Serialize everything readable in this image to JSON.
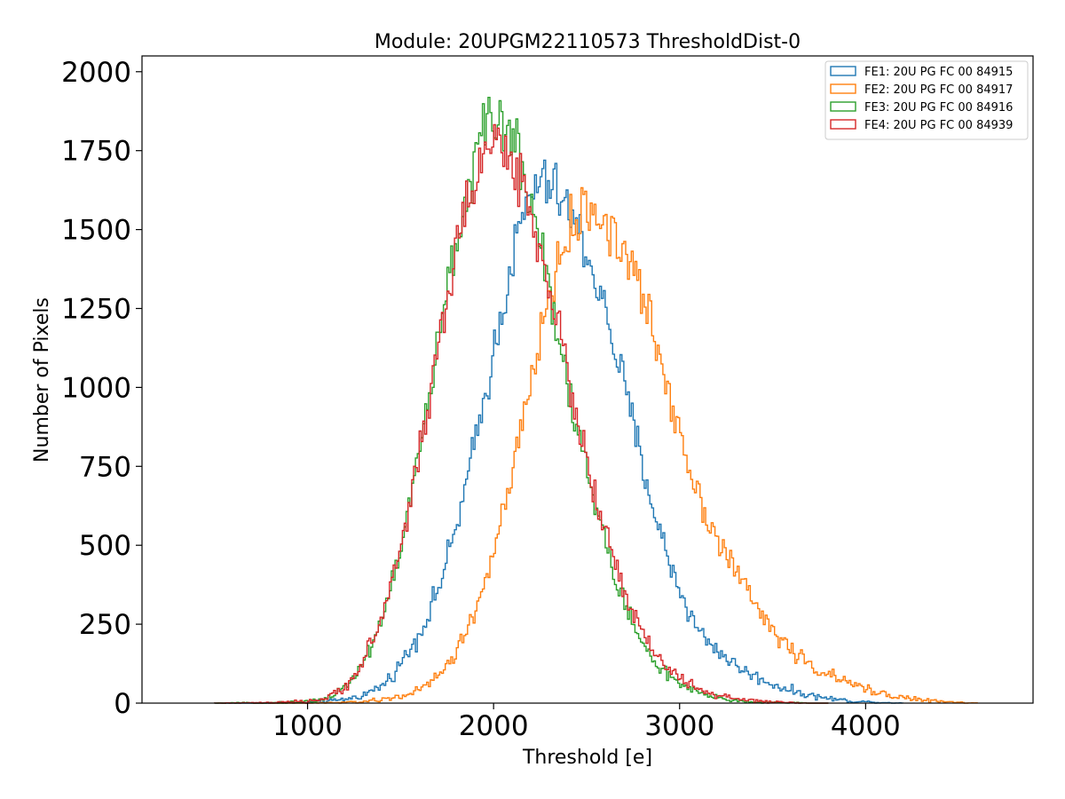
{
  "chart_data": {
    "type": "histogram",
    "title": "Module: 20UPGM22110573 ThresholdDist-0",
    "xlabel": "Threshold [e]",
    "ylabel": "Number of Pixels",
    "xlim": [
      110,
      4900
    ],
    "ylim": [
      0,
      2050
    ],
    "xticks": [
      1000,
      2000,
      3000,
      4000
    ],
    "yticks": [
      0,
      250,
      500,
      750,
      1000,
      1250,
      1500,
      1750,
      2000
    ],
    "grid": false,
    "legend_position": "top-right",
    "series": [
      {
        "name": "FE1: 20U PG FC 00 84915",
        "color": "#1f77b4",
        "x": [
          500,
          800,
          1000,
          1100,
          1200,
          1300,
          1400,
          1450,
          1500,
          1550,
          1600,
          1650,
          1700,
          1750,
          1800,
          1850,
          1900,
          1950,
          2000,
          2050,
          2100,
          2150,
          2200,
          2250,
          2300,
          2350,
          2400,
          2450,
          2500,
          2550,
          2600,
          2650,
          2700,
          2750,
          2800,
          2850,
          2900,
          2950,
          3000,
          3050,
          3100,
          3200,
          3300,
          3400,
          3500,
          3600,
          3700,
          3800,
          3900,
          4000,
          4100,
          4200
        ],
        "y": [
          0,
          0,
          2,
          5,
          12,
          25,
          55,
          85,
          125,
          170,
          220,
          280,
          360,
          450,
          560,
          680,
          820,
          960,
          1110,
          1260,
          1400,
          1520,
          1610,
          1650,
          1640,
          1610,
          1560,
          1500,
          1430,
          1340,
          1240,
          1130,
          1010,
          880,
          760,
          640,
          530,
          440,
          360,
          290,
          230,
          170,
          120,
          85,
          60,
          40,
          25,
          15,
          8,
          4,
          2,
          0
        ],
        "peak": 1690
      },
      {
        "name": "FE2: 20U PG FC 00 84917",
        "color": "#ff7f0e",
        "x": [
          800,
          1000,
          1200,
          1300,
          1400,
          1500,
          1600,
          1650,
          1700,
          1750,
          1800,
          1850,
          1900,
          1950,
          2000,
          2050,
          2100,
          2150,
          2200,
          2250,
          2300,
          2350,
          2400,
          2450,
          2500,
          2550,
          2600,
          2650,
          2700,
          2750,
          2800,
          2850,
          2900,
          2950,
          3000,
          3050,
          3100,
          3200,
          3300,
          3400,
          3500,
          3600,
          3700,
          3800,
          3900,
          4000,
          4100,
          4200,
          4300,
          4400,
          4500,
          4600
        ],
        "y": [
          0,
          0,
          2,
          5,
          10,
          22,
          40,
          60,
          85,
          120,
          165,
          220,
          290,
          380,
          480,
          590,
          720,
          860,
          1010,
          1160,
          1290,
          1400,
          1480,
          1530,
          1560,
          1560,
          1520,
          1480,
          1430,
          1370,
          1290,
          1190,
          1080,
          970,
          870,
          760,
          660,
          530,
          420,
          320,
          230,
          170,
          120,
          90,
          65,
          45,
          30,
          18,
          10,
          5,
          2,
          0
        ]
      },
      {
        "name": "FE3: 20U PG FC 00 84916",
        "color": "#2ca02c",
        "x": [
          500,
          800,
          1000,
          1100,
          1150,
          1200,
          1250,
          1300,
          1350,
          1400,
          1450,
          1500,
          1550,
          1600,
          1650,
          1700,
          1750,
          1800,
          1850,
          1900,
          1950,
          2000,
          2050,
          2100,
          2150,
          2200,
          2250,
          2300,
          2350,
          2400,
          2450,
          2500,
          2550,
          2600,
          2650,
          2700,
          2750,
          2800,
          2850,
          2900,
          2950,
          3000,
          3050,
          3100,
          3200,
          3300,
          3400,
          3500,
          3600,
          3700,
          3800
        ],
        "y": [
          0,
          1,
          5,
          15,
          30,
          50,
          85,
          130,
          190,
          270,
          370,
          490,
          630,
          790,
          960,
          1130,
          1300,
          1460,
          1600,
          1720,
          1800,
          1850,
          1840,
          1790,
          1710,
          1600,
          1470,
          1320,
          1170,
          1010,
          870,
          740,
          620,
          510,
          410,
          320,
          250,
          190,
          145,
          110,
          82,
          60,
          44,
          32,
          16,
          8,
          4,
          2,
          1,
          0,
          0
        ]
      },
      {
        "name": "FE4: 20U PG FC 00 84939",
        "color": "#d62728",
        "x": [
          500,
          800,
          1000,
          1100,
          1150,
          1200,
          1250,
          1300,
          1350,
          1400,
          1450,
          1500,
          1550,
          1600,
          1650,
          1700,
          1750,
          1800,
          1850,
          1900,
          1950,
          2000,
          2050,
          2100,
          2150,
          2200,
          2250,
          2300,
          2350,
          2400,
          2450,
          2500,
          2550,
          2600,
          2650,
          2700,
          2750,
          2800,
          2850,
          2900,
          2950,
          3000,
          3050,
          3100,
          3200,
          3300,
          3400,
          3500,
          3600,
          3700,
          3800
        ],
        "y": [
          0,
          1,
          5,
          15,
          30,
          52,
          88,
          135,
          195,
          275,
          375,
          495,
          635,
          790,
          955,
          1120,
          1280,
          1430,
          1560,
          1670,
          1740,
          1770,
          1760,
          1720,
          1650,
          1560,
          1450,
          1320,
          1180,
          1040,
          900,
          770,
          650,
          540,
          440,
          355,
          280,
          220,
          172,
          135,
          105,
          80,
          60,
          45,
          25,
          13,
          7,
          3,
          1,
          0,
          0
        ]
      }
    ]
  }
}
